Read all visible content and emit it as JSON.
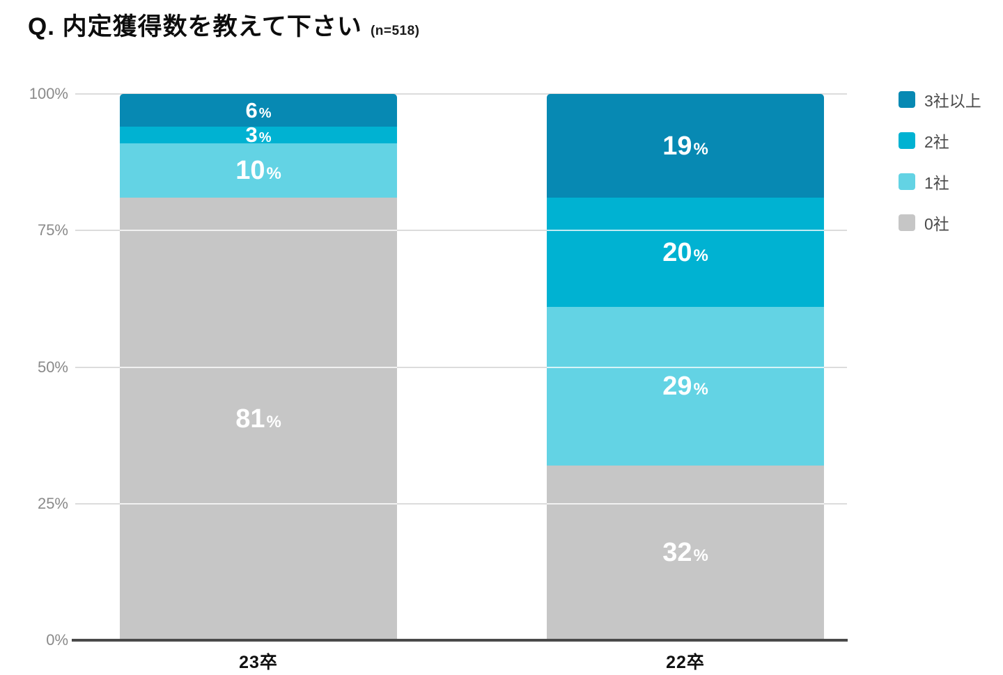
{
  "title": {
    "question": "Q. 内定獲得数を教えて下さい",
    "sample": "(n=518)"
  },
  "chart_data": {
    "type": "bar",
    "stacked": true,
    "unit": "%",
    "title": "Q. 内定獲得数を教えて下さい (n=518)",
    "categories": [
      "23卒",
      "22卒"
    ],
    "series": [
      {
        "name": "3社以上",
        "color": "#0789b3",
        "values": [
          6,
          19
        ]
      },
      {
        "name": "2社",
        "color": "#00b2d2",
        "values": [
          3,
          20
        ]
      },
      {
        "name": "1社",
        "color": "#63d3e4",
        "values": [
          10,
          29
        ]
      },
      {
        "name": "0社",
        "color": "#c6c6c6",
        "values": [
          81,
          32
        ]
      }
    ],
    "value_label_suffix": "%",
    "y_ticks": [
      {
        "label": "100%",
        "value": 100
      },
      {
        "label": "75%",
        "value": 75
      },
      {
        "label": "50%",
        "value": 50
      },
      {
        "label": "25%",
        "value": 25
      },
      {
        "label": "0%",
        "value": 0
      }
    ],
    "ylim": [
      0,
      100
    ],
    "grid": true,
    "legend_position": "top-right"
  }
}
